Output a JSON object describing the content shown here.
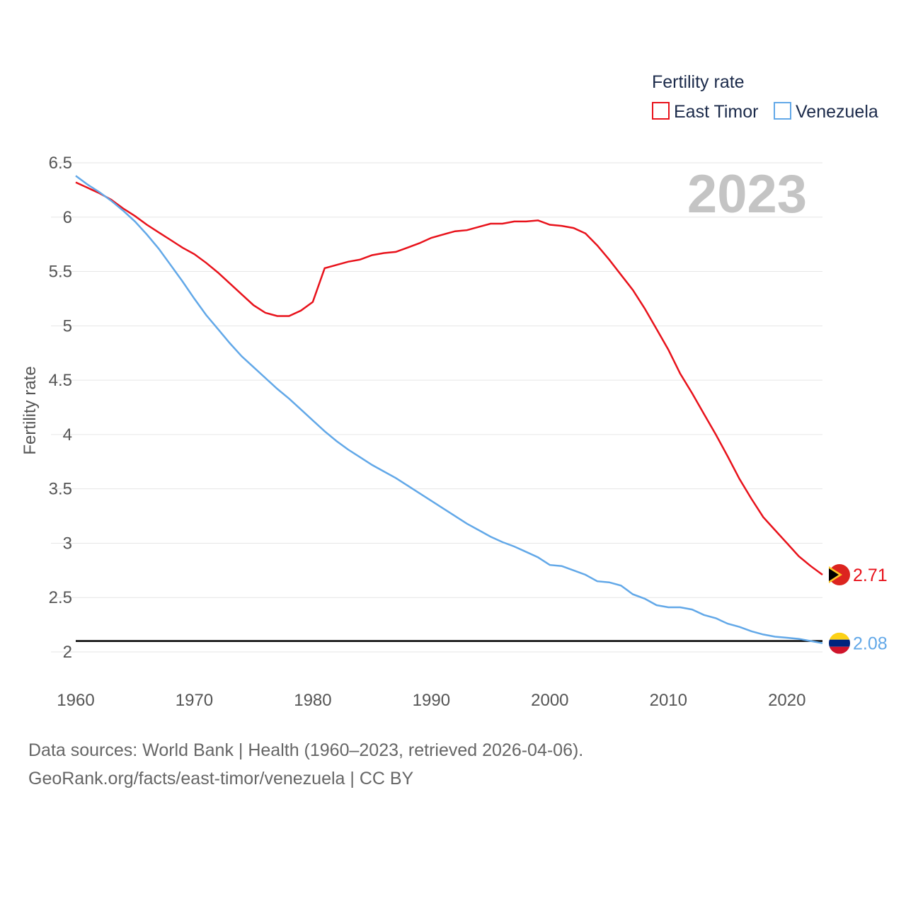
{
  "chart_data": {
    "type": "line",
    "title": "",
    "xlabel": "",
    "ylabel": "Fertility rate",
    "xlim": [
      1960,
      2023
    ],
    "ylim": [
      1.9,
      6.5
    ],
    "yticks": [
      2,
      2.5,
      3,
      3.5,
      4,
      4.5,
      5,
      5.5,
      6,
      6.5
    ],
    "yticklabels": [
      "2",
      "2.5",
      "3",
      "3.5",
      "4",
      "4.5",
      "5",
      "5.5",
      "6",
      "6.5"
    ],
    "xticks": [
      1960,
      1970,
      1980,
      1990,
      2000,
      2010,
      2020
    ],
    "xticklabels": [
      "1960",
      "1970",
      "1980",
      "1990",
      "2000",
      "2010",
      "2020"
    ],
    "year_label": "2023",
    "legend": {
      "title": "Fertility rate",
      "position": "top-right"
    },
    "reference_line": {
      "y": 2.1,
      "color": "#000000"
    },
    "x": [
      1960,
      1961,
      1962,
      1963,
      1964,
      1965,
      1966,
      1967,
      1968,
      1969,
      1970,
      1971,
      1972,
      1973,
      1974,
      1975,
      1976,
      1977,
      1978,
      1979,
      1980,
      1981,
      1982,
      1983,
      1984,
      1985,
      1986,
      1987,
      1988,
      1989,
      1990,
      1991,
      1992,
      1993,
      1994,
      1995,
      1996,
      1997,
      1998,
      1999,
      2000,
      2001,
      2002,
      2003,
      2004,
      2005,
      2006,
      2007,
      2008,
      2009,
      2010,
      2011,
      2012,
      2013,
      2014,
      2015,
      2016,
      2017,
      2018,
      2019,
      2020,
      2021,
      2022,
      2023
    ],
    "series": [
      {
        "name": "East Timor",
        "color": "#e8121b",
        "end_label": "2.71",
        "values": [
          6.32,
          6.27,
          6.22,
          6.16,
          6.08,
          6.01,
          5.93,
          5.86,
          5.79,
          5.72,
          5.66,
          5.58,
          5.49,
          5.39,
          5.29,
          5.19,
          5.12,
          5.09,
          5.09,
          5.14,
          5.22,
          5.53,
          5.56,
          5.59,
          5.61,
          5.65,
          5.67,
          5.68,
          5.72,
          5.76,
          5.81,
          5.84,
          5.87,
          5.88,
          5.91,
          5.94,
          5.94,
          5.96,
          5.96,
          5.97,
          5.93,
          5.92,
          5.9,
          5.85,
          5.74,
          5.61,
          5.47,
          5.33,
          5.16,
          4.97,
          4.78,
          4.56,
          4.38,
          4.19,
          4.0,
          3.8,
          3.59,
          3.41,
          3.24,
          3.12,
          3.0,
          2.88,
          2.79,
          2.71
        ]
      },
      {
        "name": "Venezuela",
        "color": "#62a8e8",
        "end_label": "2.08",
        "values": [
          6.38,
          6.3,
          6.23,
          6.15,
          6.06,
          5.96,
          5.84,
          5.71,
          5.56,
          5.41,
          5.25,
          5.1,
          4.97,
          4.84,
          4.72,
          4.62,
          4.52,
          4.42,
          4.33,
          4.23,
          4.13,
          4.03,
          3.94,
          3.86,
          3.79,
          3.72,
          3.66,
          3.6,
          3.53,
          3.46,
          3.39,
          3.32,
          3.25,
          3.18,
          3.12,
          3.06,
          3.01,
          2.97,
          2.92,
          2.87,
          2.8,
          2.79,
          2.75,
          2.71,
          2.65,
          2.64,
          2.61,
          2.53,
          2.49,
          2.43,
          2.41,
          2.41,
          2.39,
          2.34,
          2.31,
          2.26,
          2.23,
          2.19,
          2.16,
          2.14,
          2.13,
          2.12,
          2.1,
          2.08
        ]
      }
    ]
  },
  "footer": {
    "source_line": "Data sources: World Bank | Health (1960–2023, retrieved 2026-04-06).",
    "credit_line": "GeoRank.org/facts/east-timor/venezuela | CC BY"
  }
}
